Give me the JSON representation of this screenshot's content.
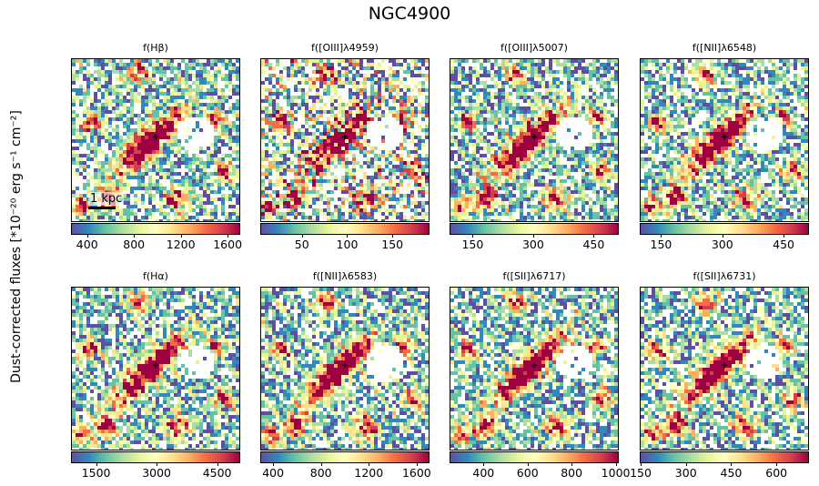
{
  "title": "NGC4900",
  "ylabel": "Dust-corrected fluxes [*10⁻²⁰ erg s⁻¹ cm⁻²]",
  "scalebar_label": "1 kpc",
  "colormap": [
    "#5e4fa2",
    "#3288bd",
    "#66c2a5",
    "#abdda4",
    "#e6f598",
    "#ffffbf",
    "#fee08b",
    "#fdae61",
    "#f46d43",
    "#d53e4f",
    "#9e0142"
  ],
  "chart_data": [
    {
      "type": "heatmap",
      "title": "f(Hβ)",
      "colorbar_range": [
        270,
        1700
      ],
      "colorbar_ticks": [
        400,
        800,
        1200,
        1600
      ]
    },
    {
      "type": "heatmap",
      "title": "f([OIII]λ4959)",
      "colorbar_range": [
        5,
        190
      ],
      "colorbar_ticks": [
        50,
        100,
        150
      ]
    },
    {
      "type": "heatmap",
      "title": "f([OIII]λ5007)",
      "colorbar_range": [
        95,
        510
      ],
      "colorbar_ticks": [
        150,
        300,
        450
      ]
    },
    {
      "type": "heatmap",
      "title": "f([NII]λ6548)",
      "colorbar_range": [
        100,
        510
      ],
      "colorbar_ticks": [
        150,
        300,
        450
      ]
    },
    {
      "type": "heatmap",
      "title": "f(Hα)",
      "colorbar_range": [
        900,
        5050
      ],
      "colorbar_ticks": [
        1500,
        3000,
        4500
      ]
    },
    {
      "type": "heatmap",
      "title": "f([NII]λ6583)",
      "colorbar_range": [
        300,
        1700
      ],
      "colorbar_ticks": [
        400,
        800,
        1200,
        1600
      ]
    },
    {
      "type": "heatmap",
      "title": "f([SII]λ6717)",
      "colorbar_range": [
        250,
        1010
      ],
      "colorbar_ticks": [
        400,
        600,
        800,
        1000
      ]
    },
    {
      "type": "heatmap",
      "title": "f([SII]λ6731)",
      "colorbar_range": [
        150,
        705
      ],
      "colorbar_ticks": [
        150,
        300,
        450,
        600
      ]
    }
  ]
}
